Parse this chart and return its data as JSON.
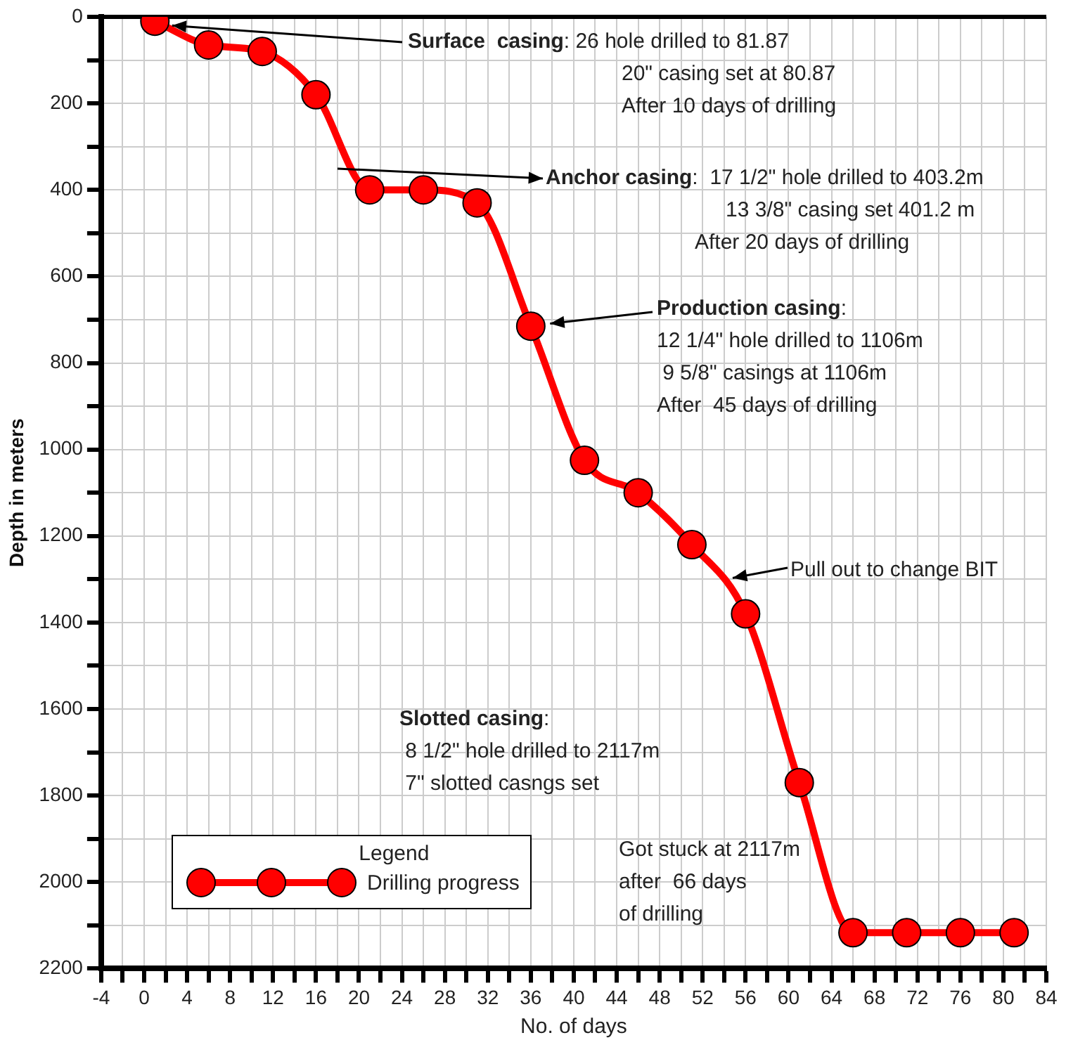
{
  "chart_data": {
    "type": "line",
    "xlabel": "No. of days",
    "ylabel": "Depth in meters",
    "legend_title": "Legend",
    "x": [
      1,
      6,
      11,
      16,
      21,
      26,
      31,
      36,
      41,
      46,
      51,
      56,
      61,
      66,
      71,
      76,
      81
    ],
    "series": [
      {
        "name": "Drilling progress",
        "color": "#ff0000",
        "values": [
          10,
          65,
          80,
          180,
          400,
          400,
          430,
          715,
          1025,
          1100,
          1220,
          1380,
          1770,
          2117,
          2117,
          2117,
          2117
        ]
      }
    ],
    "xlim": [
      -4,
      84
    ],
    "ylim": [
      2200,
      0
    ],
    "xticks": [
      -4,
      {
        "value": -2,
        "label": null
      },
      0,
      {
        "value": 2,
        "label": null
      },
      4,
      {
        "value": 6,
        "label": null
      },
      8,
      {
        "value": 10,
        "label": null
      },
      12,
      {
        "value": 14,
        "label": null
      },
      16,
      {
        "value": 18,
        "label": null
      },
      20,
      {
        "value": 22,
        "label": null
      },
      24,
      {
        "value": 26,
        "label": null
      },
      28,
      {
        "value": 30,
        "label": null
      },
      32,
      {
        "value": 34,
        "label": null
      },
      36,
      {
        "value": 38,
        "label": null
      },
      40,
      {
        "value": 42,
        "label": null
      },
      44,
      {
        "value": 46,
        "label": null
      },
      48,
      {
        "value": 50,
        "label": null
      },
      52,
      {
        "value": 54,
        "label": null
      },
      56,
      {
        "value": 58,
        "label": null
      },
      60,
      {
        "value": 62,
        "label": null
      },
      64,
      {
        "value": 66,
        "label": null
      },
      68,
      {
        "value": 70,
        "label": null
      },
      72,
      {
        "value": 74,
        "label": null
      },
      76,
      {
        "value": 78,
        "label": null
      },
      80,
      {
        "value": 82,
        "label": null
      },
      84
    ],
    "yticks": [
      0,
      {
        "value": 100,
        "label": null
      },
      200,
      {
        "value": 300,
        "label": null
      },
      400,
      {
        "value": 500,
        "label": null
      },
      600,
      {
        "value": 700,
        "label": null
      },
      800,
      {
        "value": 900,
        "label": null
      },
      1000,
      {
        "value": 1100,
        "label": null
      },
      1200,
      {
        "value": 1300,
        "label": null
      },
      1400,
      {
        "value": 1500,
        "label": null
      },
      1600,
      {
        "value": 1700,
        "label": null
      },
      1800,
      {
        "value": 1900,
        "label": null
      },
      2000,
      {
        "value": 2100,
        "label": null
      },
      2200
    ],
    "grid": true,
    "legend": "bottom left",
    "marker": "circle",
    "line_style": "solid",
    "annotations": [
      {
        "text": "Surface  casing: 26 hole drilled to 81.87\n20\" casing set at 80.87\nAfter 10 days of drilling",
        "x": 2.6,
        "y": 20
      },
      "Anchor casing:  17 1/2\" hole drilled to 403.2m\n13 3/8\" casing set 401.2 m\nAfter 20 days of drilling",
      {
        "text": "Production casing:\n12 1/4\" hole drilled to 1106m\n 9 5/8\" casings at 1106m\nAfter  45 days of drilling",
        "x": 37.8,
        "y": 709
      },
      {
        "text": "Pull out to change BIT",
        "x": 54.8,
        "y": 1297
      },
      "Slotted casing:\n 8 1/2\" hole drilled to 2117m\n 7\" slotted casngs set",
      "Got stuck at 2117m\nafter  66 days\nof drilling"
    ]
  }
}
